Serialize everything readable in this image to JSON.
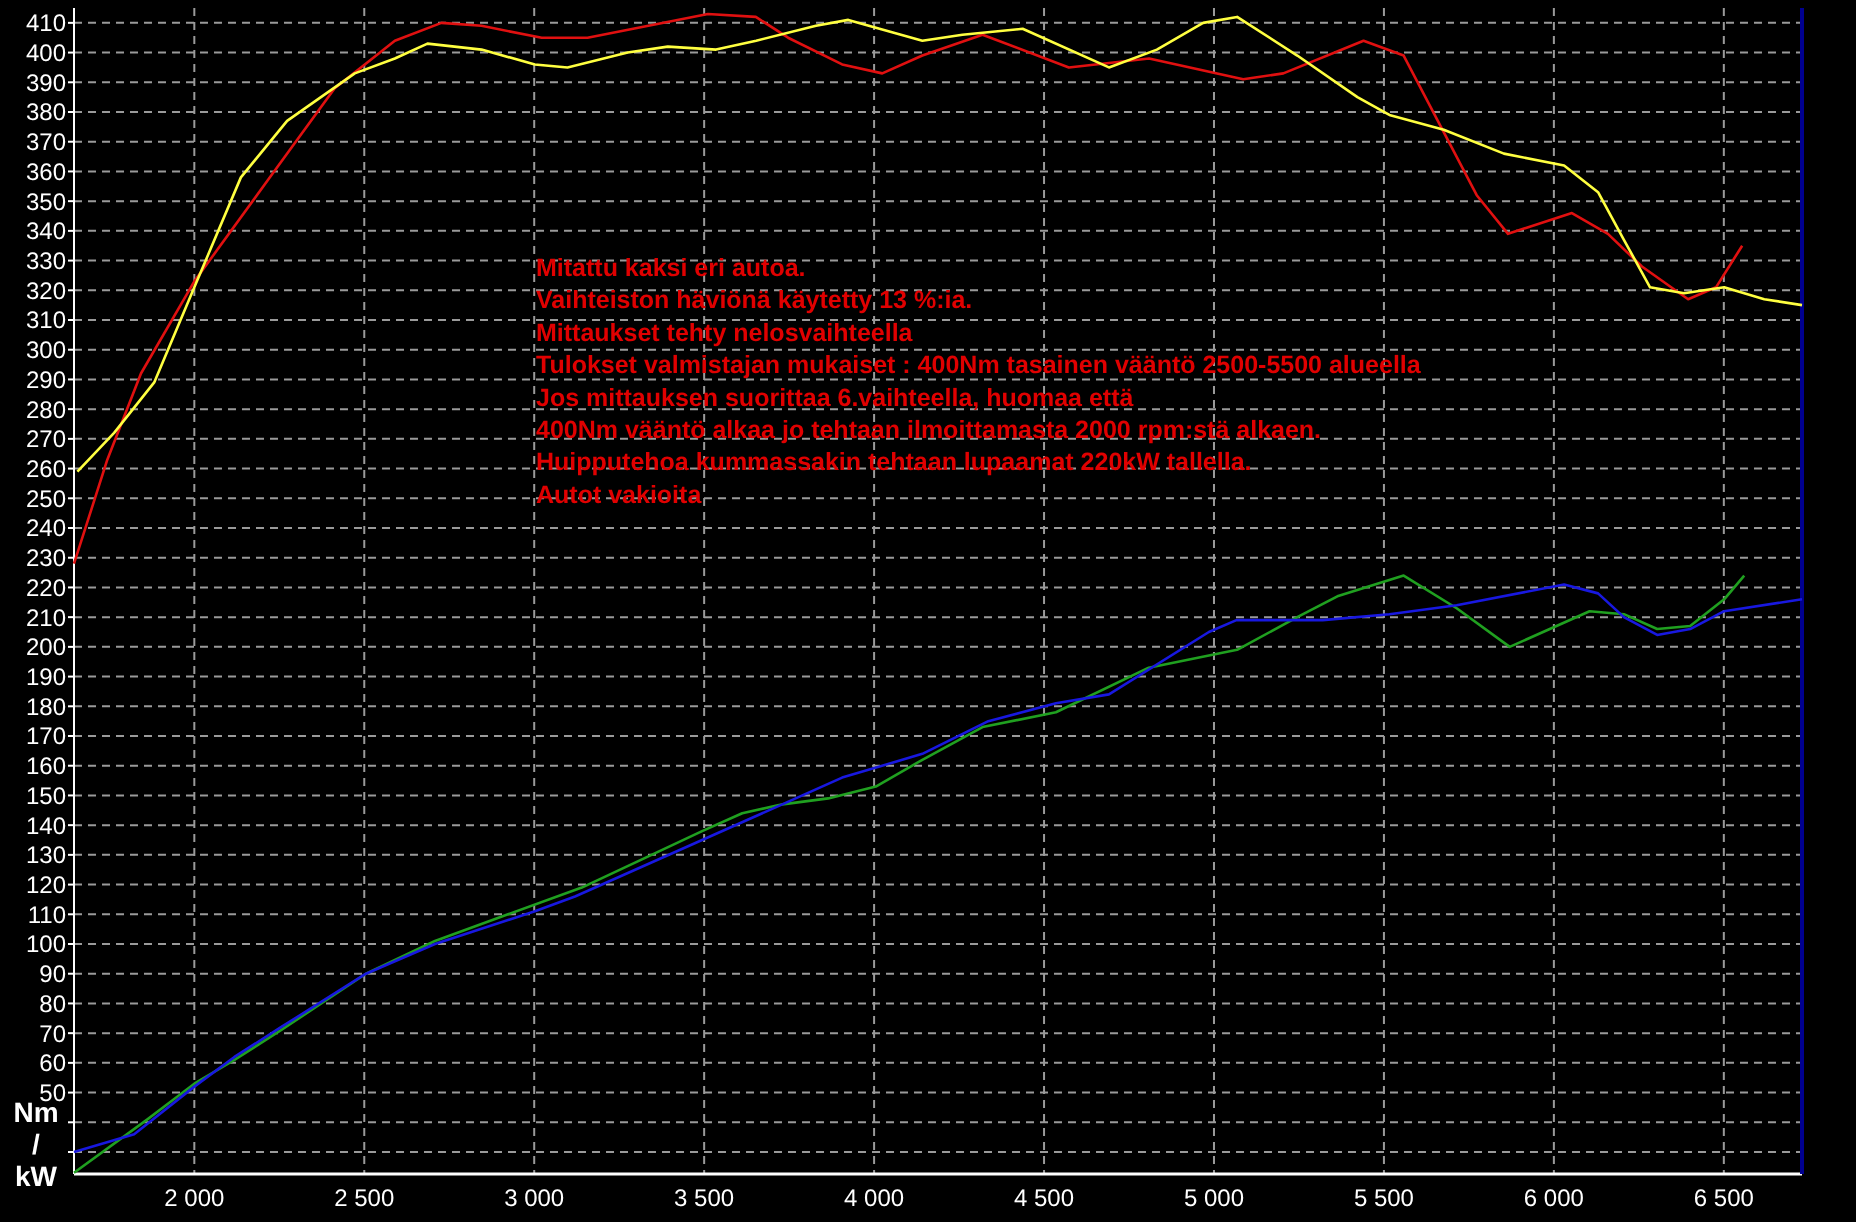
{
  "chart_data": {
    "type": "line",
    "ylabel": "Nm / kW",
    "xlim": [
      1646,
      6730
    ],
    "ylim": [
      22.6,
      415
    ],
    "xticks": [
      {
        "value": 2000,
        "label": "2 000"
      },
      {
        "value": 2500,
        "label": "2 500"
      },
      {
        "value": 3000,
        "label": "3 000"
      },
      {
        "value": 3500,
        "label": "3 500"
      },
      {
        "value": 4000,
        "label": "4 000"
      },
      {
        "value": 4500,
        "label": "4 500"
      },
      {
        "value": 5000,
        "label": "5 000"
      },
      {
        "value": 5500,
        "label": "5 500"
      },
      {
        "value": 6000,
        "label": "6 000"
      },
      {
        "value": 6500,
        "label": "6 500"
      }
    ],
    "yticks": [
      {
        "value": 30,
        "label": null
      },
      {
        "value": 40,
        "label": null
      },
      50,
      60,
      70,
      80,
      90,
      100,
      110,
      120,
      130,
      140,
      150,
      160,
      170,
      180,
      190,
      200,
      210,
      220,
      230,
      240,
      250,
      260,
      270,
      280,
      290,
      300,
      310,
      320,
      330,
      340,
      350,
      360,
      370,
      380,
      390,
      400,
      410
    ],
    "grid": true,
    "line_style": "solid",
    "series": [
      {
        "color": "#e01010",
        "x": [
          1646,
          1744,
          1843,
          2000,
          2216,
          2413,
          2590,
          2727,
          2845,
          3022,
          3157,
          3511,
          3652,
          3747,
          3906,
          4024,
          4142,
          4319,
          4573,
          4809,
          5086,
          5204,
          5440,
          5558,
          5773,
          5865,
          6053,
          6159,
          6259,
          6395,
          6477,
          6554
        ],
        "values": [
          228,
          263,
          292,
          323,
          357,
          388,
          404,
          410,
          409,
          405,
          405,
          413,
          412,
          405,
          396,
          393,
          399,
          406,
          395,
          398,
          391,
          393,
          404,
          399,
          352,
          339,
          346,
          339,
          328,
          317,
          321,
          335
        ]
      },
      {
        "color": "#ffff40",
        "x": [
          1656,
          1764,
          1882,
          2000,
          2137,
          2273,
          2472,
          2590,
          2686,
          2845,
          3002,
          3098,
          3275,
          3393,
          3535,
          3653,
          3829,
          3924,
          4142,
          4260,
          4437,
          4691,
          4832,
          4968,
          5068,
          5245,
          5422,
          5516,
          5676,
          5853,
          6030,
          6130,
          6206,
          6283,
          6383,
          6501,
          6619,
          6730
        ],
        "values": [
          259,
          272,
          289,
          321,
          358,
          377,
          393,
          398,
          403,
          401,
          396,
          395,
          400,
          402,
          401,
          404,
          409,
          411,
          404,
          406,
          408,
          395,
          401,
          410,
          412,
          399,
          385,
          379,
          374,
          366,
          362,
          353,
          337,
          321,
          319,
          321,
          317,
          315
        ]
      },
      {
        "color": "#20a020",
        "x": [
          1646,
          1862,
          2000,
          2118,
          2255,
          2505,
          2708,
          2923,
          3140,
          3494,
          3612,
          3730,
          3865,
          4005,
          4142,
          4319,
          4535,
          4808,
          5068,
          5245,
          5363,
          5558,
          5714,
          5870,
          6105,
          6206,
          6304,
          6401,
          6501,
          6560
        ],
        "values": [
          23,
          41,
          53,
          61,
          71,
          90,
          101,
          110,
          119,
          138,
          144,
          147,
          149,
          153,
          162,
          173,
          178,
          193,
          199,
          210,
          217,
          224,
          213,
          200,
          212,
          211,
          206,
          207,
          216,
          224
        ]
      },
      {
        "color": "#1818e0",
        "x": [
          1646,
          1823,
          2000,
          2118,
          2255,
          2505,
          2708,
          3002,
          3120,
          3494,
          3710,
          3906,
          4142,
          4336,
          4535,
          4691,
          4985,
          5066,
          5320,
          5516,
          5714,
          6030,
          6130,
          6206,
          6304,
          6401,
          6501,
          6730
        ],
        "values": [
          30,
          36,
          52,
          62,
          72,
          90,
          100,
          111,
          116,
          135,
          146,
          156,
          164,
          175,
          181,
          184,
          205,
          209,
          209,
          211,
          214,
          221,
          218,
          210,
          204,
          206,
          212,
          216
        ]
      }
    ],
    "annotations": [
      "Mitattu kaksi eri autoa.",
      "Vaihteiston häviönä käytetty 13 %:ia.",
      "Mittaukset tehty nelosvaihteella",
      "Tulokset valmistajan mukaiset : 400Nm tasainen vääntö 2500-5500 alueella",
      "Jos mittauksen suorittaa 6.vaihteella, huomaa että",
      "400Nm vääntö alkaa jo tehtaan ilmoittamasta 2000 rpm:stä alkaen.",
      "Huipputehoa kummassakin tehtaan lupaamat 220kW tallella.",
      "Autot vakioita"
    ]
  }
}
